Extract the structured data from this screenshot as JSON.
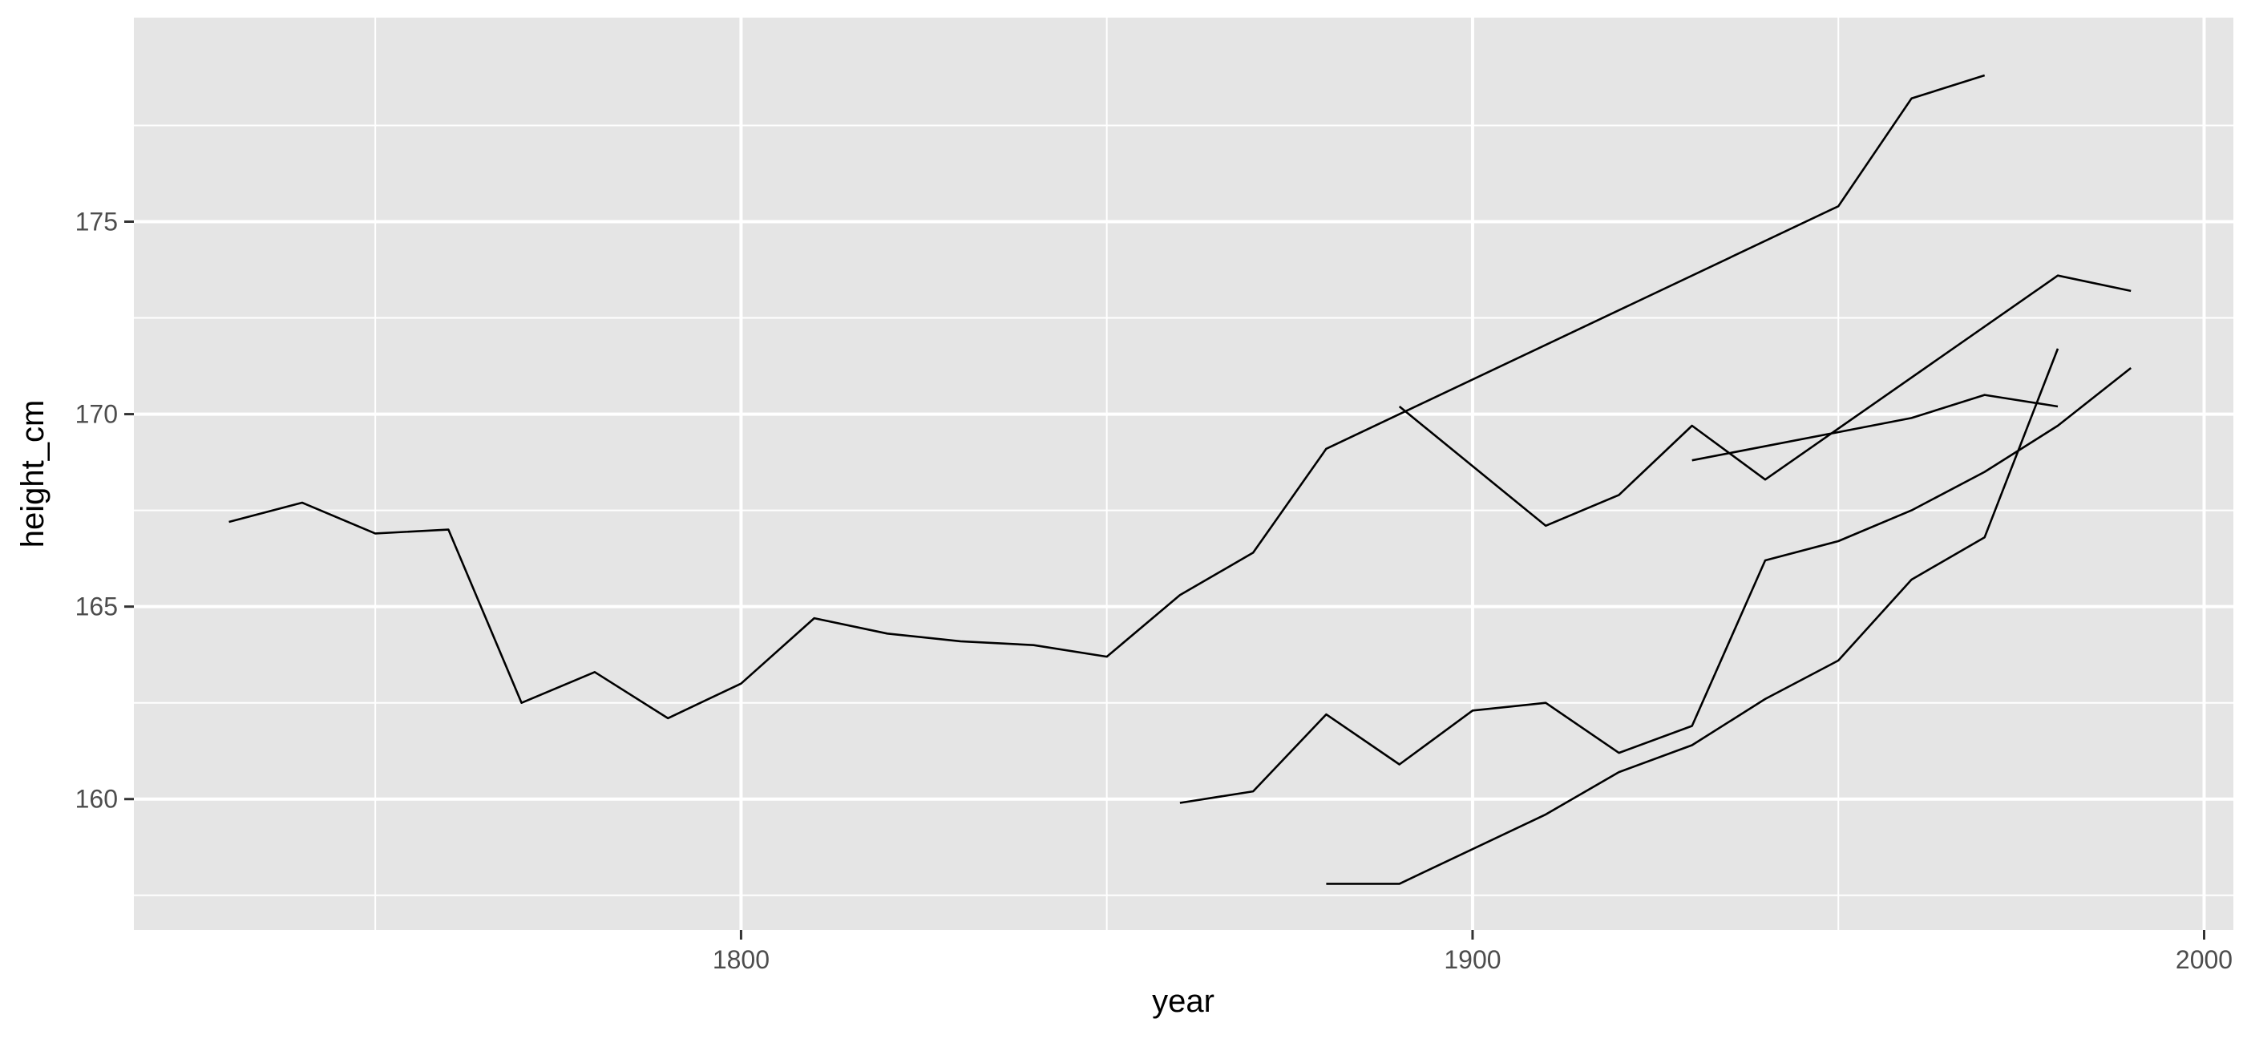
{
  "chart_data": {
    "type": "line",
    "title": "",
    "xlabel": "year",
    "ylabel": "height_cm",
    "xlim": [
      1717,
      2004
    ],
    "ylim": [
      156.6,
      180.3
    ],
    "x_major_ticks": [
      1800,
      1900,
      2000
    ],
    "x_minor_ticks": [
      1750,
      1850,
      1950
    ],
    "y_major_ticks": [
      160,
      165,
      170,
      175
    ],
    "y_minor_ticks": [
      157.5,
      162.5,
      167.5,
      172.5,
      177.5
    ],
    "x_tick_labels": [
      "1800",
      "1900",
      "2000"
    ],
    "y_tick_labels": [
      "160",
      "165",
      "170",
      "175"
    ],
    "grid": true,
    "legend": "none",
    "colors": {
      "panel": "#e5e5e5",
      "grid": "#ffffff",
      "line": "#000000",
      "tick": "#333333"
    },
    "series": [
      {
        "x": [
          1730,
          1740,
          1750,
          1760,
          1770,
          1780,
          1790,
          1800,
          1810,
          1820,
          1830,
          1840,
          1850,
          1860,
          1870,
          1880,
          1890,
          1950,
          1960,
          1970
        ],
        "y": [
          167.2,
          167.7,
          166.9,
          167.0,
          162.5,
          163.3,
          162.1,
          163.0,
          164.7,
          164.3,
          164.1,
          164.0,
          163.7,
          165.3,
          166.4,
          169.1,
          170.0,
          175.4,
          178.2,
          178.8
        ]
      },
      {
        "x": [
          1890,
          1910,
          1920,
          1930,
          1940,
          1980,
          1990
        ],
        "y": [
          170.2,
          167.1,
          167.9,
          169.7,
          168.3,
          173.6,
          173.2
        ]
      },
      {
        "x": [
          1930,
          1960,
          1970,
          1980
        ],
        "y": [
          168.8,
          169.9,
          170.5,
          170.2
        ]
      },
      {
        "x": [
          1860,
          1870,
          1880,
          1890,
          1900,
          1910,
          1920,
          1930,
          1940,
          1950,
          1960,
          1970,
          1980,
          1990
        ],
        "y": [
          159.9,
          160.2,
          162.2,
          160.9,
          162.3,
          162.5,
          161.2,
          161.9,
          166.2,
          166.7,
          167.5,
          168.5,
          169.7,
          171.2
        ]
      },
      {
        "x": [
          1880,
          1890,
          1910,
          1920,
          1930,
          1940,
          1950,
          1960,
          1970,
          1980
        ],
        "y": [
          157.8,
          157.8,
          159.6,
          160.7,
          161.4,
          162.6,
          163.6,
          165.7,
          166.8,
          171.7
        ]
      }
    ]
  }
}
